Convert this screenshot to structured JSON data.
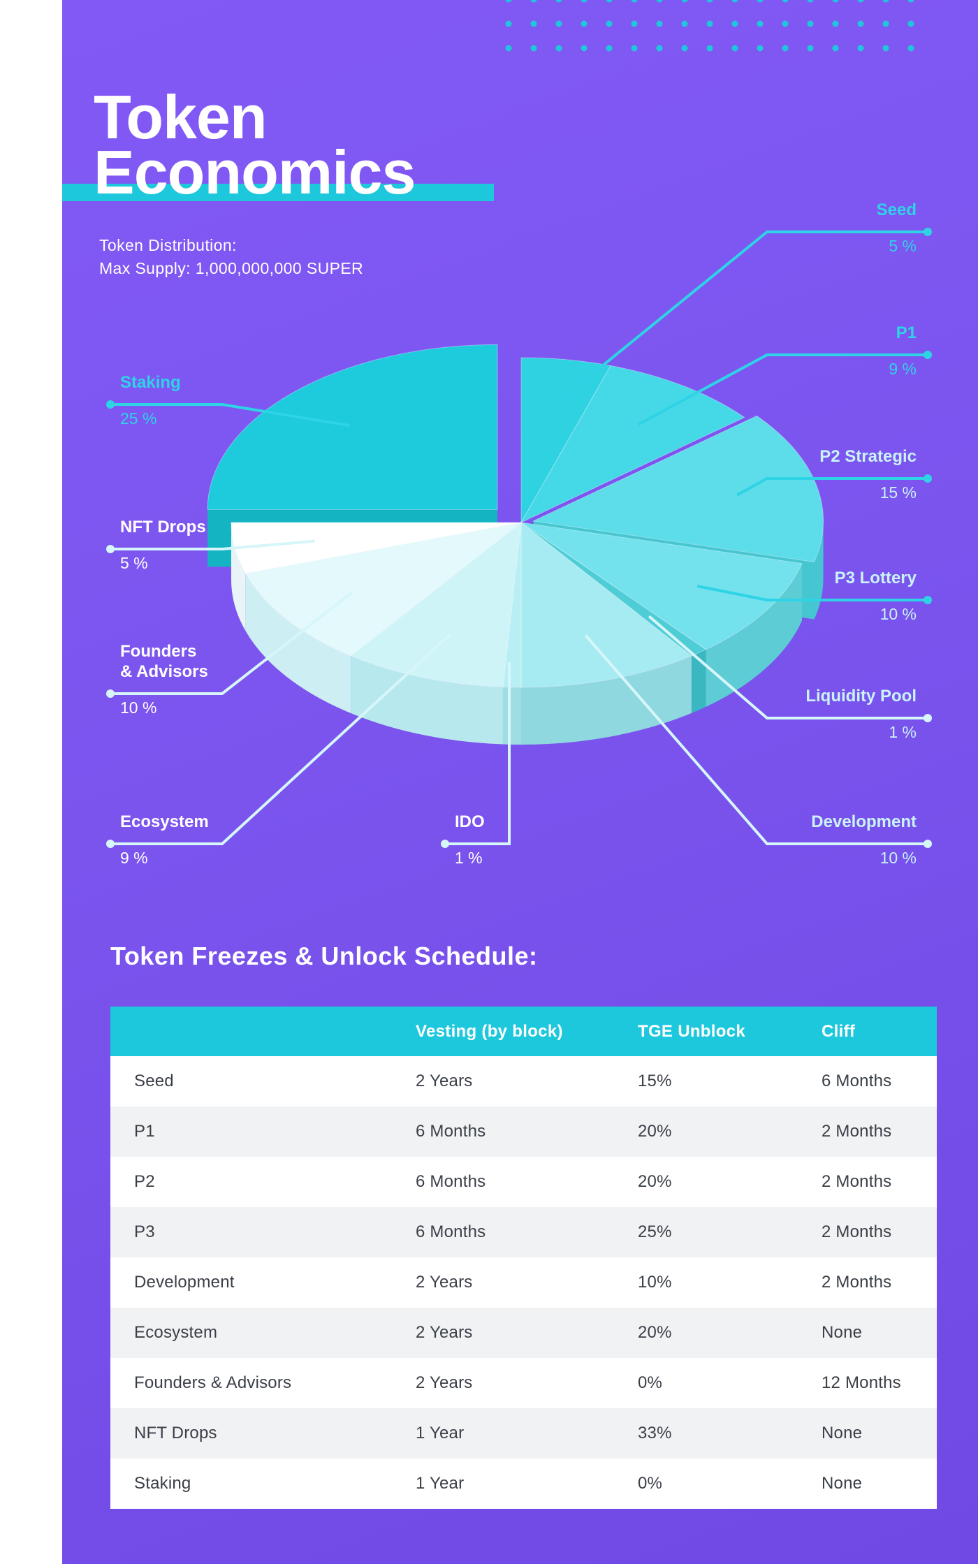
{
  "title": {
    "line1": "Token",
    "line2": "Economics"
  },
  "subtitle": {
    "line1": "Token Distribution:",
    "line2": "Max Supply: 1,000,000,000 SUPER"
  },
  "colors": {
    "background": "#7b54ee",
    "accent": "#1ec8dc",
    "label_cyan": "#2fd3e6",
    "label_white": "#ffffff"
  },
  "chart_data": {
    "type": "pie",
    "style": "3d-exploded",
    "slices": [
      {
        "name": "Seed",
        "value": 5,
        "label": "5 %"
      },
      {
        "name": "P1",
        "value": 9,
        "label": "9 %"
      },
      {
        "name": "P2 Strategic",
        "value": 15,
        "label": "15 %"
      },
      {
        "name": "P3 Lottery",
        "value": 10,
        "label": "10 %"
      },
      {
        "name": "Liquidity Pool",
        "value": 1,
        "label": "1 %"
      },
      {
        "name": "Development",
        "value": 10,
        "label": "10 %"
      },
      {
        "name": "IDO",
        "value": 1,
        "label": "1 %"
      },
      {
        "name": "Ecosystem",
        "value": 9,
        "label": "9 %"
      },
      {
        "name": "Founders & Advisors",
        "value": 10,
        "label": "10 %"
      },
      {
        "name": "NFT Drops",
        "value": 5,
        "label": "5 %"
      },
      {
        "name": "Staking",
        "value": 25,
        "label": "25 %"
      }
    ]
  },
  "schedule": {
    "heading": "Token Freezes & Unlock Schedule:",
    "columns": [
      "",
      "Vesting (by block)",
      "TGE Unblock",
      "Cliff"
    ],
    "rows": [
      [
        "Seed",
        "2 Years",
        "15%",
        "6 Months"
      ],
      [
        "P1",
        "6 Months",
        "20%",
        "2 Months"
      ],
      [
        "P2",
        "6 Months",
        "20%",
        "2 Months"
      ],
      [
        "P3",
        "6 Months",
        "25%",
        "2 Months"
      ],
      [
        "Development",
        "2 Years",
        "10%",
        "2 Months"
      ],
      [
        "Ecosystem",
        "2 Years",
        "20%",
        "None"
      ],
      [
        "Founders & Advisors",
        "2 Years",
        "0%",
        "12 Months"
      ],
      [
        "NFT Drops",
        "1 Year",
        "33%",
        "None"
      ],
      [
        "Staking",
        "1 Year",
        "0%",
        "None"
      ]
    ]
  }
}
